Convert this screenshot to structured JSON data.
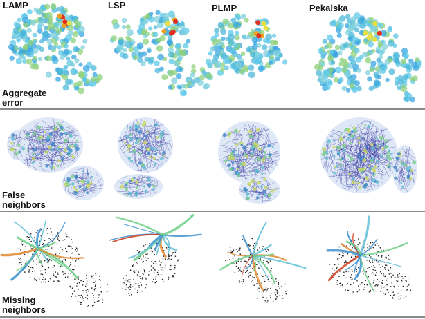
{
  "columns": [
    "LAMP",
    "LSP",
    "PLMP",
    "Pekalska"
  ],
  "rows": [
    {
      "label_line1": "Aggregate",
      "label_line2": "error"
    },
    {
      "label_line1": "False",
      "label_line2": "neighbors"
    },
    {
      "label_line1": "Missing",
      "label_line2": "neighbors"
    }
  ],
  "colors": {
    "aggregate_points": [
      "#5ec8e8",
      "#7fd0dc",
      "#3aa6e0",
      "#8ed07a",
      "#4cb8d8"
    ],
    "aggregate_hot": [
      "#e8e040",
      "#f0a020",
      "#e03020"
    ],
    "false_edge": "#2a2a9a",
    "false_fill": [
      "#5fb8d0",
      "#7ccf8a",
      "#3e86c8",
      "#c8d860"
    ],
    "missing_branch": [
      "#5fc0d8",
      "#6fcf8a",
      "#3c8fd0",
      "#e08a30",
      "#d04020"
    ],
    "missing_dots": "#222222",
    "divider": "#8a8a8a"
  }
}
